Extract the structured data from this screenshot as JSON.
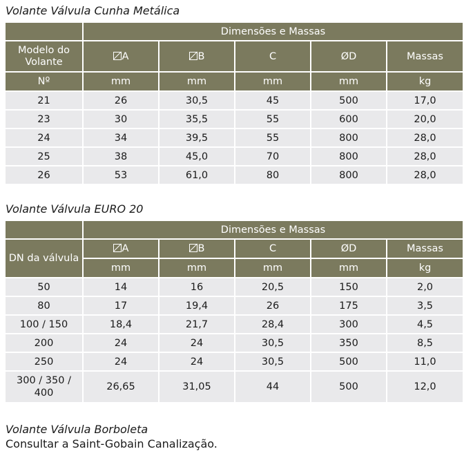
{
  "table1": {
    "title": "Volante Válvula Cunha Metálica",
    "group_header": "Dimensões e Massas",
    "col1_header": "Modelo do Volante",
    "col1_unit": "Nº",
    "columns": [
      {
        "label": "A",
        "unit": "mm",
        "icon": "diameter-icon"
      },
      {
        "label": "B",
        "unit": "mm",
        "icon": "diameter-icon"
      },
      {
        "label": "C",
        "unit": "mm"
      },
      {
        "label": "ØD",
        "unit": "mm"
      },
      {
        "label": "Massas",
        "unit": "kg"
      }
    ],
    "rows": [
      [
        "21",
        "26",
        "30,5",
        "45",
        "500",
        "17,0"
      ],
      [
        "23",
        "30",
        "35,5",
        "55",
        "600",
        "20,0"
      ],
      [
        "24",
        "34",
        "39,5",
        "55",
        "800",
        "28,0"
      ],
      [
        "25",
        "38",
        "45,0",
        "70",
        "800",
        "28,0"
      ],
      [
        "26",
        "53",
        "61,0",
        "80",
        "800",
        "28,0"
      ]
    ]
  },
  "table2": {
    "title": "Volante Válvula EURO 20",
    "group_header": "Dimensões e Massas",
    "col1_header": "DN da válvula",
    "columns": [
      {
        "label": "A",
        "unit": "mm",
        "icon": "diameter-icon"
      },
      {
        "label": "B",
        "unit": "mm",
        "icon": "diameter-icon"
      },
      {
        "label": "C",
        "unit": "mm"
      },
      {
        "label": "ØD",
        "unit": "mm"
      },
      {
        "label": "Massas",
        "unit": "kg"
      }
    ],
    "rows": [
      [
        "50",
        "14",
        "16",
        "20,5",
        "150",
        "2,0"
      ],
      [
        "80",
        "17",
        "19,4",
        "26",
        "175",
        "3,5"
      ],
      [
        "100 / 150",
        "18,4",
        "21,7",
        "28,4",
        "300",
        "4,5"
      ],
      [
        "200",
        "24",
        "24",
        "30,5",
        "350",
        "8,5"
      ],
      [
        "250",
        "24",
        "24",
        "30,5",
        "500",
        "11,0"
      ],
      [
        "300 / 350 / 400",
        "26,65",
        "31,05",
        "44",
        "500",
        "12,0"
      ]
    ]
  },
  "section3": {
    "title": "Volante Válvula Borboleta",
    "text": "Consultar a Saint-Gobain Canalização."
  },
  "colors": {
    "header_bg": "#7b7a5e",
    "header_text": "#ffffff",
    "row_bg": "#e9e9eb"
  }
}
